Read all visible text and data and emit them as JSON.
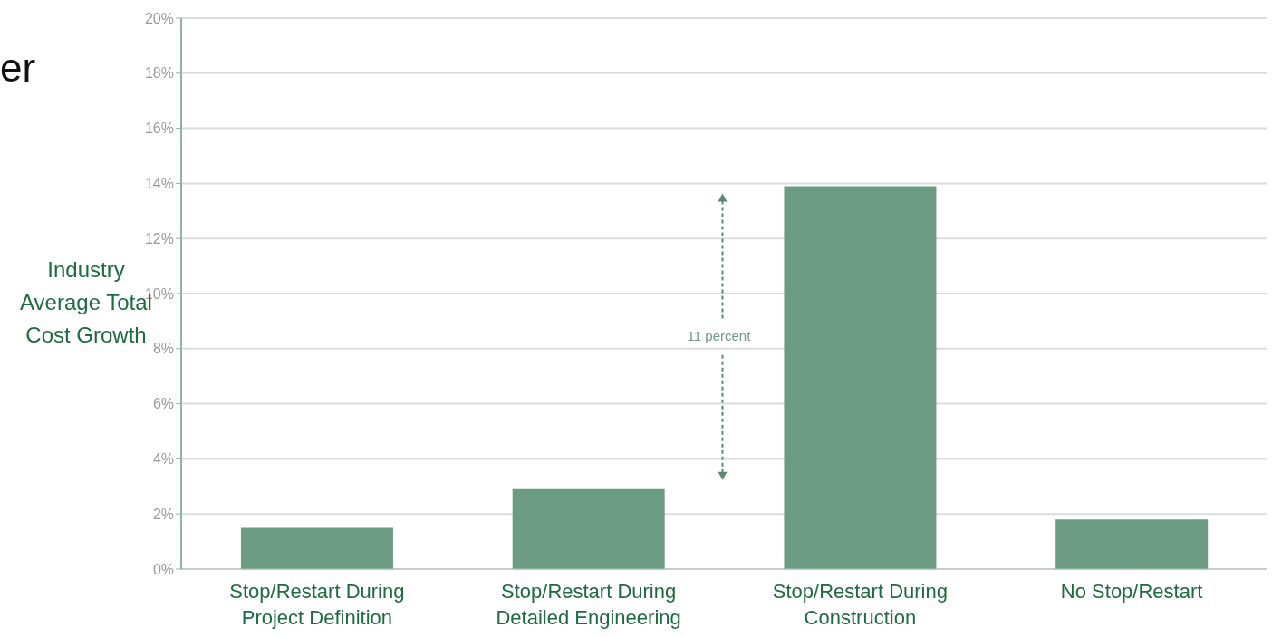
{
  "chart_data": {
    "type": "bar",
    "title": "er",
    "ylabel": "Industry Average Total Cost Growth",
    "categories": [
      "Stop/Restart During Project Definition",
      "Stop/Restart During Detailed Engineering",
      "Stop/Restart During Construction",
      "No Stop/Restart"
    ],
    "values": [
      1.5,
      2.9,
      13.9,
      1.8
    ],
    "color": "#6b9b82",
    "ylim": [
      0,
      20
    ],
    "yticks": [
      {
        "value": 0,
        "label": "0%"
      },
      {
        "value": 2,
        "label": "2%"
      },
      {
        "value": 4,
        "label": "4%"
      },
      {
        "value": 6,
        "label": "6%"
      },
      {
        "value": 8,
        "label": "8%"
      },
      {
        "value": 10,
        "label": "10%"
      },
      {
        "value": 12,
        "label": "12%"
      },
      {
        "value": 14,
        "label": "14%"
      },
      {
        "value": 16,
        "label": "16%"
      },
      {
        "value": 18,
        "label": "18%"
      },
      {
        "value": 20,
        "label": "20%"
      }
    ],
    "grid": "y",
    "annotations": [
      "11 percent"
    ]
  }
}
